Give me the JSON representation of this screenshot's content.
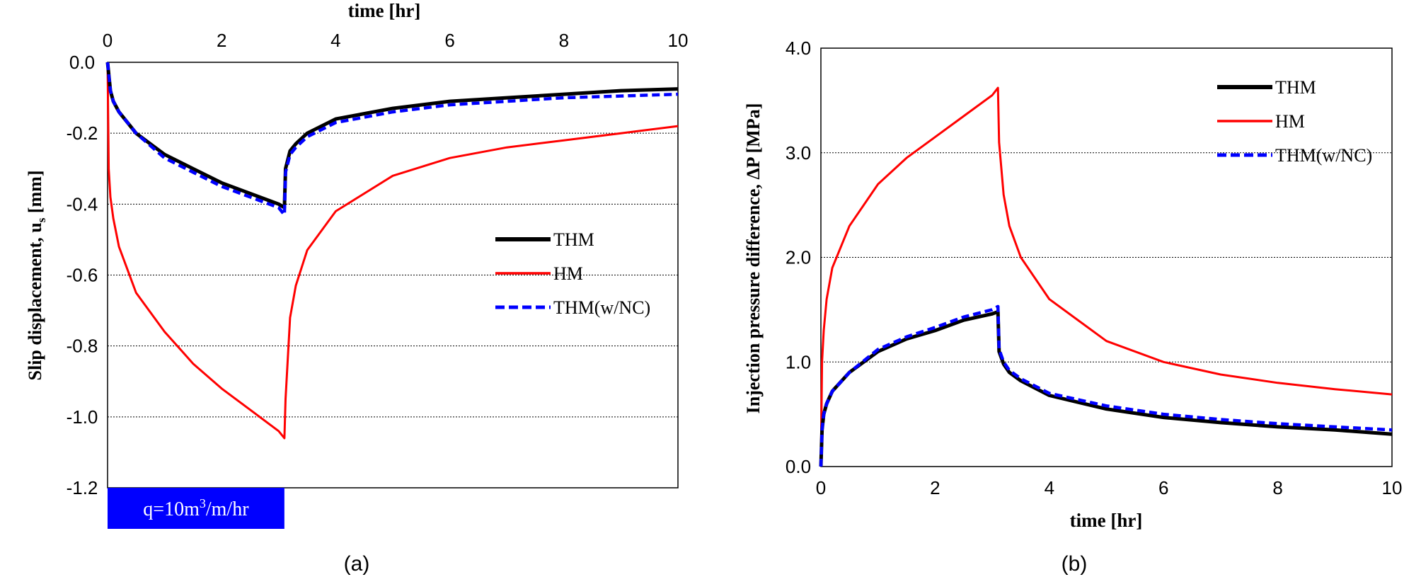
{
  "chart_data": [
    {
      "panel_label": "(a)",
      "type": "line",
      "xlabel": "time [hr]",
      "ylabel": "Slip displacement, u",
      "ylabel_sub": "s",
      "ylabel_unit": " [mm]",
      "xlim": [
        0,
        10
      ],
      "ylim": [
        -1.2,
        0.0
      ],
      "x_ticks": [
        "0",
        "2",
        "4",
        "6",
        "8",
        "10"
      ],
      "y_ticks": [
        "0.0",
        "-0.2",
        "-0.4",
        "-0.6",
        "-0.8",
        "-1.0",
        "-1.2"
      ],
      "x_axis_position": "top",
      "grid": "horizontal dotted",
      "legend_position": "right-middle",
      "annotation": {
        "text_pre": "q=10m",
        "sup": "3",
        "text_post": "/m/hr",
        "x_range": [
          0,
          3.1
        ],
        "color": "#0000FF"
      },
      "series": [
        {
          "name": "THM",
          "color": "#000000",
          "style": "solid",
          "x": [
            0,
            0.05,
            0.1,
            0.2,
            0.5,
            1.0,
            1.5,
            2.0,
            2.5,
            3.0,
            3.1,
            3.12,
            3.2,
            3.3,
            3.5,
            4.0,
            5.0,
            6.0,
            7.0,
            8.0,
            9.0,
            10.0
          ],
          "y": [
            0.0,
            -0.08,
            -0.11,
            -0.14,
            -0.2,
            -0.26,
            -0.3,
            -0.34,
            -0.37,
            -0.4,
            -0.41,
            -0.3,
            -0.25,
            -0.23,
            -0.2,
            -0.16,
            -0.13,
            -0.11,
            -0.1,
            -0.09,
            -0.08,
            -0.075
          ]
        },
        {
          "name": "HM",
          "color": "#FF0000",
          "style": "solid",
          "x": [
            0,
            0.02,
            0.05,
            0.1,
            0.2,
            0.5,
            1.0,
            1.5,
            2.0,
            2.5,
            3.0,
            3.1,
            3.12,
            3.2,
            3.3,
            3.5,
            4.0,
            5.0,
            6.0,
            7.0,
            8.0,
            9.0,
            10.0
          ],
          "y": [
            0.0,
            -0.3,
            -0.38,
            -0.44,
            -0.52,
            -0.65,
            -0.76,
            -0.85,
            -0.92,
            -0.98,
            -1.04,
            -1.06,
            -0.95,
            -0.72,
            -0.63,
            -0.53,
            -0.42,
            -0.32,
            -0.27,
            -0.24,
            -0.22,
            -0.2,
            -0.18
          ]
        },
        {
          "name": "THM(w/NC)",
          "color": "#0000FF",
          "style": "dashed",
          "x": [
            0,
            0.05,
            0.1,
            0.2,
            0.5,
            1.0,
            1.5,
            2.0,
            2.5,
            3.0,
            3.1,
            3.12,
            3.2,
            3.3,
            3.5,
            4.0,
            5.0,
            6.0,
            7.0,
            8.0,
            9.0,
            10.0
          ],
          "y": [
            0.0,
            -0.08,
            -0.11,
            -0.14,
            -0.2,
            -0.27,
            -0.31,
            -0.35,
            -0.38,
            -0.41,
            -0.43,
            -0.31,
            -0.26,
            -0.24,
            -0.21,
            -0.17,
            -0.14,
            -0.12,
            -0.11,
            -0.1,
            -0.095,
            -0.09
          ]
        }
      ]
    },
    {
      "panel_label": "(b)",
      "type": "line",
      "xlabel": "time [hr]",
      "ylabel": "Injection pressure difference, ΔP [MPa]",
      "xlim": [
        0,
        10
      ],
      "ylim": [
        0.0,
        4.0
      ],
      "x_ticks": [
        "0",
        "2",
        "4",
        "6",
        "8",
        "10"
      ],
      "y_ticks": [
        "0.0",
        "1.0",
        "2.0",
        "3.0",
        "4.0"
      ],
      "x_axis_position": "bottom",
      "grid": "horizontal dotted",
      "legend_position": "top-right",
      "series": [
        {
          "name": "THM",
          "color": "#000000",
          "style": "solid",
          "x": [
            0,
            0.02,
            0.05,
            0.1,
            0.2,
            0.5,
            1.0,
            1.5,
            2.0,
            2.5,
            3.0,
            3.1,
            3.12,
            3.2,
            3.3,
            3.5,
            4.0,
            5.0,
            6.0,
            7.0,
            8.0,
            9.0,
            10.0
          ],
          "y": [
            0.0,
            0.35,
            0.5,
            0.6,
            0.72,
            0.9,
            1.1,
            1.22,
            1.3,
            1.4,
            1.46,
            1.48,
            1.1,
            0.98,
            0.9,
            0.82,
            0.68,
            0.55,
            0.47,
            0.42,
            0.38,
            0.35,
            0.31
          ]
        },
        {
          "name": "HM",
          "color": "#FF0000",
          "style": "solid",
          "x": [
            0,
            0.02,
            0.05,
            0.1,
            0.2,
            0.5,
            1.0,
            1.5,
            2.0,
            2.5,
            3.0,
            3.1,
            3.12,
            3.2,
            3.3,
            3.5,
            4.0,
            5.0,
            6.0,
            7.0,
            8.0,
            9.0,
            10.0
          ],
          "y": [
            0.0,
            1.0,
            1.3,
            1.6,
            1.9,
            2.3,
            2.7,
            2.95,
            3.15,
            3.35,
            3.55,
            3.62,
            3.1,
            2.6,
            2.3,
            2.0,
            1.6,
            1.2,
            1.0,
            0.88,
            0.8,
            0.74,
            0.69
          ]
        },
        {
          "name": "THM(w/NC)",
          "color": "#0000FF",
          "style": "dashed",
          "x": [
            0,
            0.02,
            0.05,
            0.1,
            0.2,
            0.5,
            1.0,
            1.5,
            2.0,
            2.5,
            3.0,
            3.1,
            3.12,
            3.2,
            3.3,
            3.5,
            4.0,
            5.0,
            6.0,
            7.0,
            8.0,
            9.0,
            10.0
          ],
          "y": [
            0.0,
            0.35,
            0.5,
            0.6,
            0.72,
            0.9,
            1.12,
            1.24,
            1.33,
            1.43,
            1.5,
            1.53,
            1.12,
            1.0,
            0.92,
            0.84,
            0.7,
            0.58,
            0.5,
            0.45,
            0.41,
            0.38,
            0.35
          ]
        }
      ]
    }
  ]
}
